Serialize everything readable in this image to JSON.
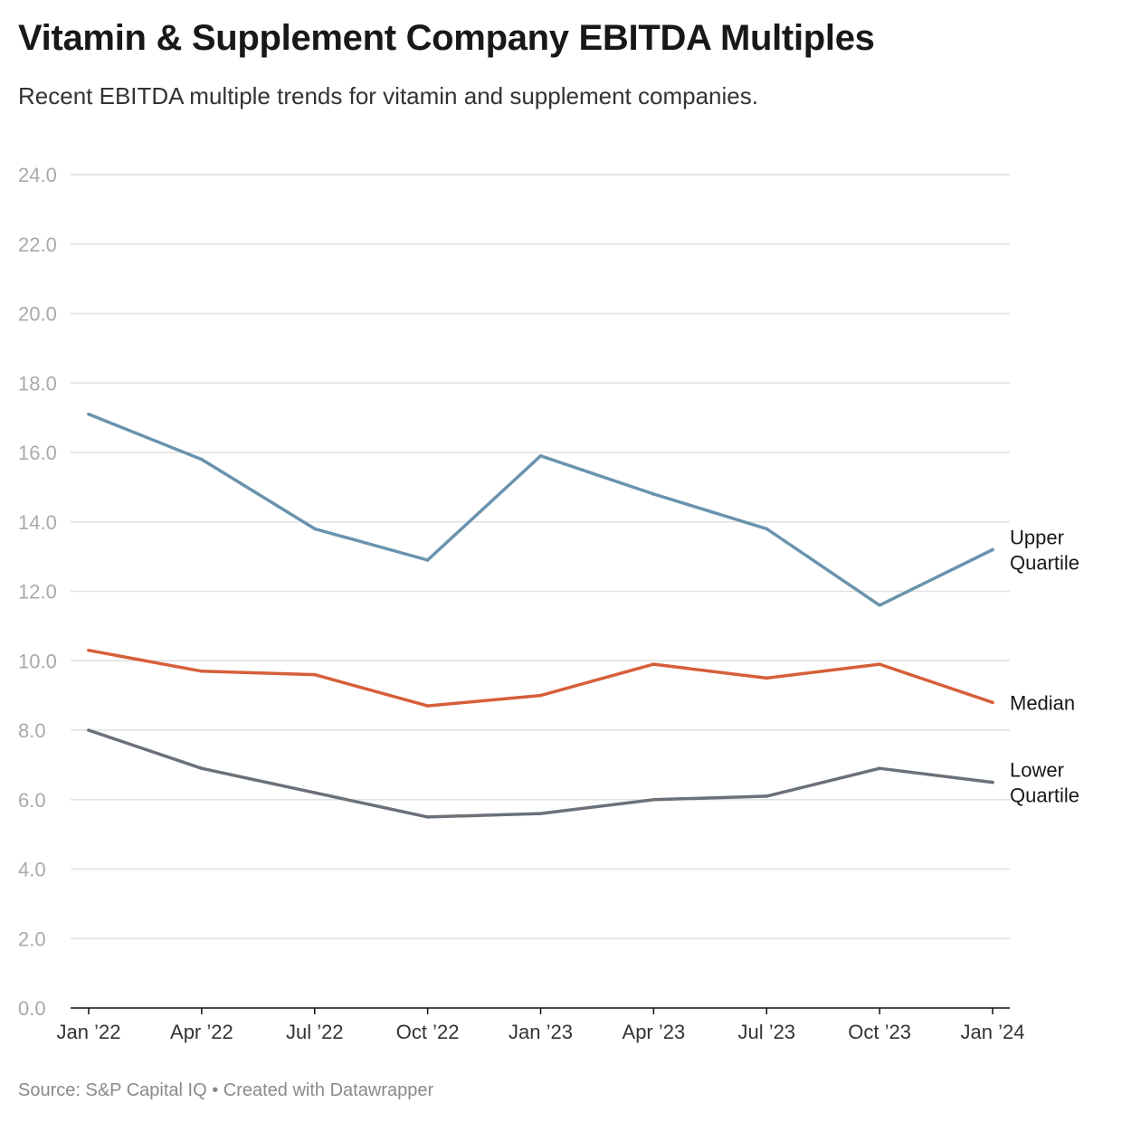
{
  "title": "Vitamin & Supplement Company EBITDA Multiples",
  "subtitle": "Recent EBITDA multiple trends for vitamin and supplement companies.",
  "footer": {
    "source": "Source: S&P Capital IQ",
    "separator": "•",
    "credit": "Created with Datawrapper"
  },
  "chart_data": {
    "type": "line",
    "categories": [
      "Jan ’22",
      "Apr ’22",
      "Jul ’22",
      "Oct ’22",
      "Jan ’23",
      "Apr ’23",
      "Jul ’23",
      "Oct ’23",
      "Jan ’24"
    ],
    "ylim": [
      0,
      24
    ],
    "yticks": [
      "0.0",
      "2.0",
      "4.0",
      "6.0",
      "8.0",
      "10.0",
      "12.0",
      "14.0",
      "16.0",
      "18.0",
      "20.0",
      "22.0",
      "24.0"
    ],
    "grid": true,
    "series": [
      {
        "name": "Upper Quartile",
        "label_lines": [
          "Upper",
          "Quartile"
        ],
        "color": "#6a93ae",
        "values": [
          17.1,
          15.8,
          13.8,
          12.9,
          15.9,
          14.8,
          13.8,
          11.6,
          13.2
        ]
      },
      {
        "name": "Median",
        "label_lines": [
          "Median"
        ],
        "color": "#d65f3a",
        "values": [
          10.3,
          9.7,
          9.6,
          8.7,
          9.0,
          9.9,
          9.5,
          9.9,
          8.8
        ]
      },
      {
        "name": "Lower Quartile",
        "label_lines": [
          "Lower",
          "Quartile"
        ],
        "color": "#6b7178",
        "values": [
          8.0,
          6.9,
          6.2,
          5.5,
          5.6,
          6.0,
          6.1,
          6.9,
          6.5
        ]
      }
    ]
  }
}
